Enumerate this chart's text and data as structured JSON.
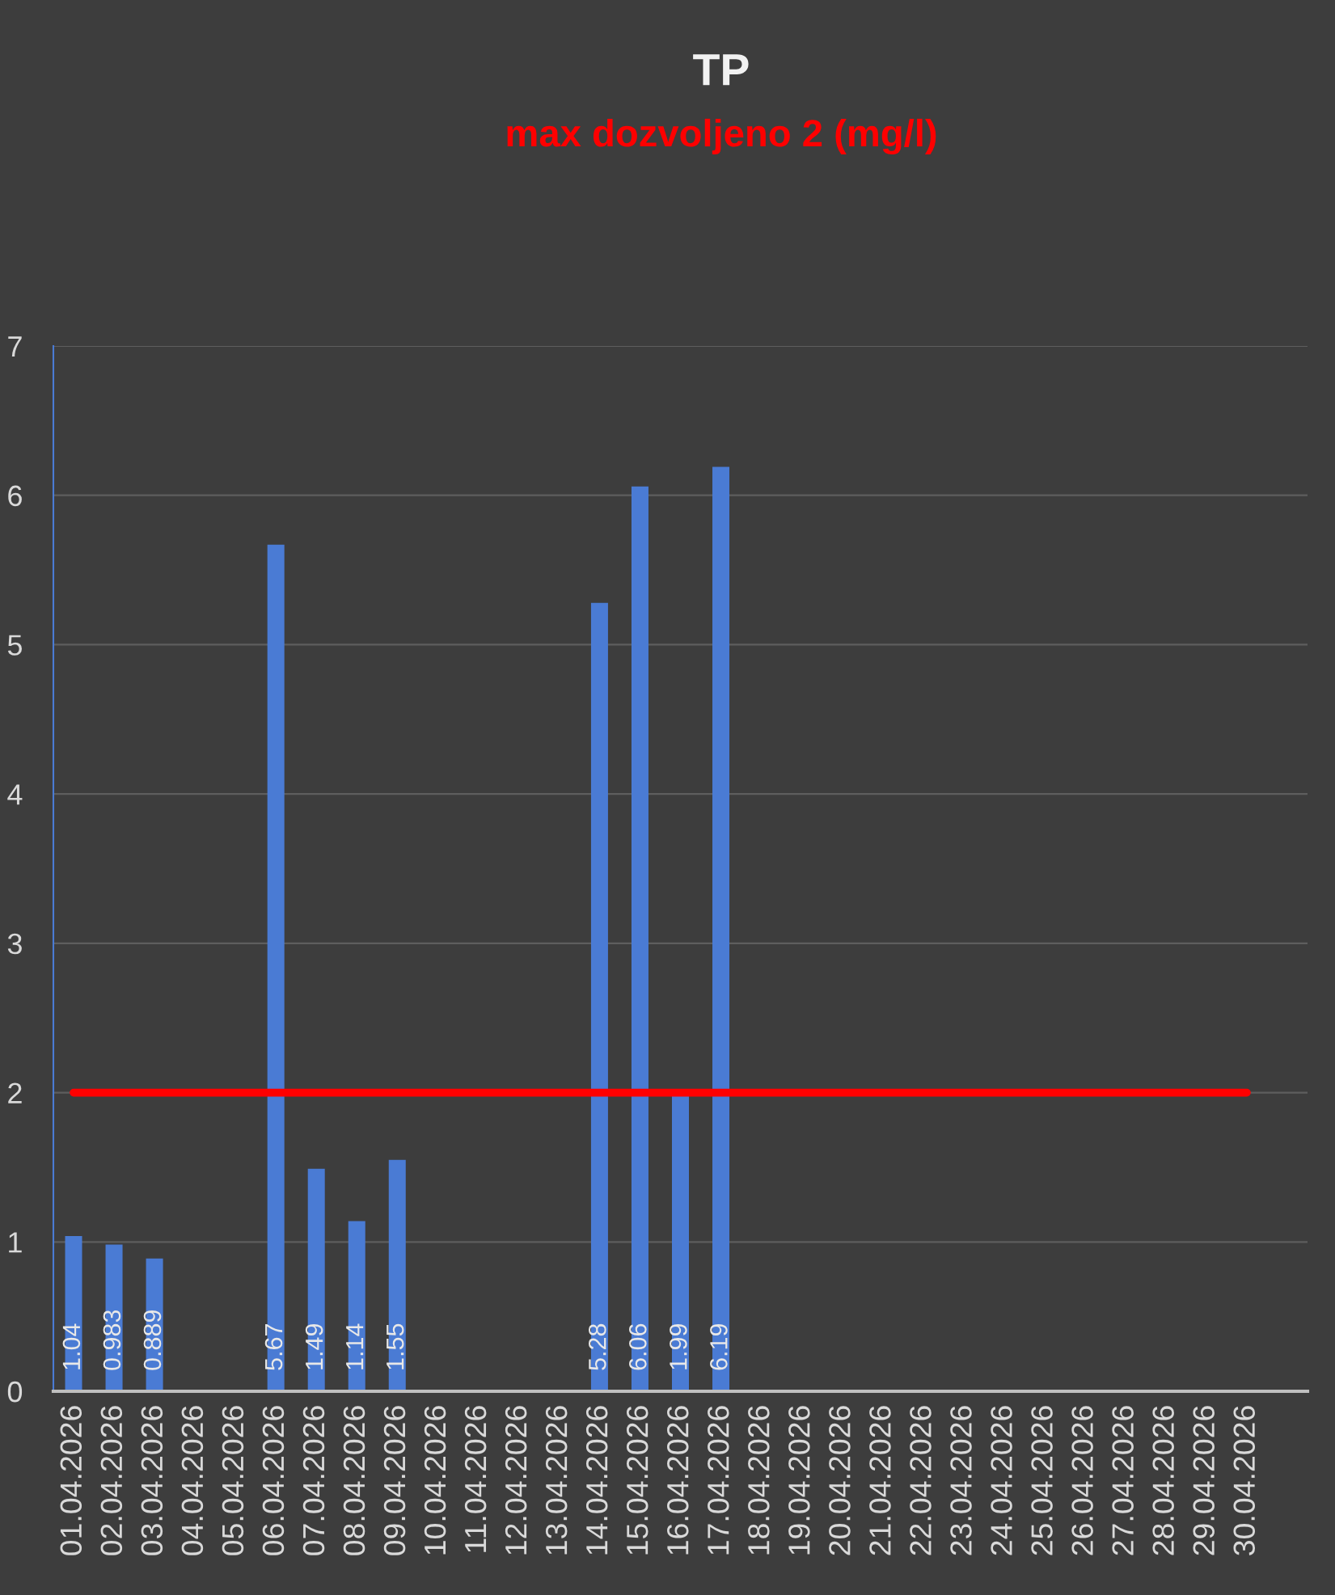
{
  "chart_data": {
    "type": "bar",
    "title": "TP",
    "subtitle": "max dozvoljeno 2 (mg/l)",
    "categories": [
      "01.04.2026",
      "02.04.2026",
      "03.04.2026",
      "04.04.2026",
      "05.04.2026",
      "06.04.2026",
      "07.04.2026",
      "08.04.2026",
      "09.04.2026",
      "10.04.2026",
      "11.04.2026",
      "12.04.2026",
      "13.04.2026",
      "14.04.2026",
      "15.04.2026",
      "16.04.2026",
      "17.04.2026",
      "18.04.2026",
      "19.04.2026",
      "20.04.2026",
      "21.04.2026",
      "22.04.2026",
      "23.04.2026",
      "24.04.2026",
      "25.04.2026",
      "26.04.2026",
      "27.04.2026",
      "28.04.2026",
      "29.04.2026",
      "30.04.2026",
      null
    ],
    "series": [
      {
        "color": "#4a7bd4",
        "values": [
          1.04,
          0.983,
          0.889,
          null,
          null,
          5.67,
          1.49,
          1.14,
          1.55,
          null,
          null,
          null,
          null,
          5.28,
          6.06,
          1.99,
          6.19,
          null,
          null,
          null,
          null,
          null,
          null,
          null,
          null,
          null,
          null,
          null,
          null,
          null,
          null
        ],
        "value_labels": [
          "1.04",
          "0.983",
          "0.889",
          null,
          null,
          "5.67",
          "1.49",
          "1.14",
          "1.55",
          null,
          null,
          null,
          null,
          "5.28",
          "6.06",
          "1.99",
          "6.19",
          null,
          null,
          null,
          null,
          null,
          null,
          null,
          null,
          null,
          null,
          null,
          null,
          null,
          null
        ]
      },
      {
        "type": "line",
        "color": "#ff0000",
        "line_style": "solid",
        "marker": "none",
        "values": [
          2,
          2,
          2,
          2,
          2,
          2,
          2,
          2,
          2,
          2,
          2,
          2,
          2,
          2,
          2,
          2,
          2,
          2,
          2,
          2,
          2,
          2,
          2,
          2,
          2,
          2,
          2,
          2,
          2,
          2,
          null
        ]
      }
    ],
    "ylim": [
      0,
      7
    ],
    "yticks": [
      0,
      1,
      2,
      3,
      4,
      5,
      6,
      7
    ],
    "grid": "y"
  }
}
